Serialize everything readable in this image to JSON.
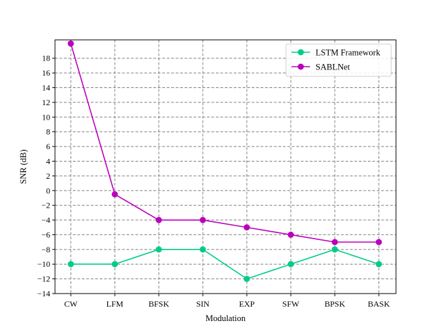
{
  "chart_data": {
    "type": "line",
    "title": "",
    "xlabel": "Modulation",
    "ylabel": "SNR (dB)",
    "categories": [
      "CW",
      "LFM",
      "BFSK",
      "SIN",
      "EXP",
      "SFW",
      "BPSK",
      "BASK"
    ],
    "ylim": [
      -14,
      20.5
    ],
    "yticks": [
      -14,
      -12,
      -10,
      -8,
      -6,
      -4,
      -2,
      0,
      2,
      4,
      6,
      8,
      10,
      12,
      14,
      16,
      18
    ],
    "grid": true,
    "legend_position": "top-right",
    "series": [
      {
        "name": "LSTM Framework",
        "color": "#00cc88",
        "values": [
          -10,
          -10,
          -8,
          -8,
          -12,
          -10,
          -8,
          -10
        ]
      },
      {
        "name": "SABLNet",
        "color": "#bb00bb",
        "values": [
          20,
          -0.5,
          -4,
          -4,
          -5,
          -6,
          -7,
          -7
        ]
      }
    ]
  }
}
